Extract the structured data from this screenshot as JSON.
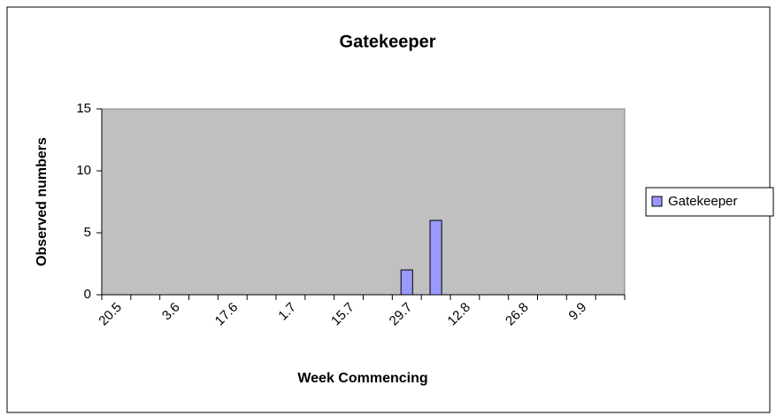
{
  "chart_data": {
    "type": "bar",
    "title": "Gatekeeper",
    "x_label": "Week Commencing",
    "y_label": "Observed numbers",
    "categories": [
      "20.5",
      null,
      "3.6",
      null,
      "17.6",
      null,
      "1.7",
      null,
      "15.7",
      null,
      "29.7",
      null,
      "12.8",
      null,
      "26.8",
      null,
      "9.9",
      null
    ],
    "series": [
      {
        "name": "Gatekeeper",
        "color": "#9999ff",
        "values": [
          0,
          0,
          0,
          0,
          0,
          0,
          0,
          0,
          0,
          0,
          2,
          6,
          0,
          0,
          0,
          0,
          0,
          0
        ]
      }
    ],
    "ylim": [
      0,
      15
    ],
    "yticks": [
      0,
      5,
      10,
      15
    ],
    "grid": false,
    "legend": "right",
    "plot_background": "#c0c0c0"
  }
}
